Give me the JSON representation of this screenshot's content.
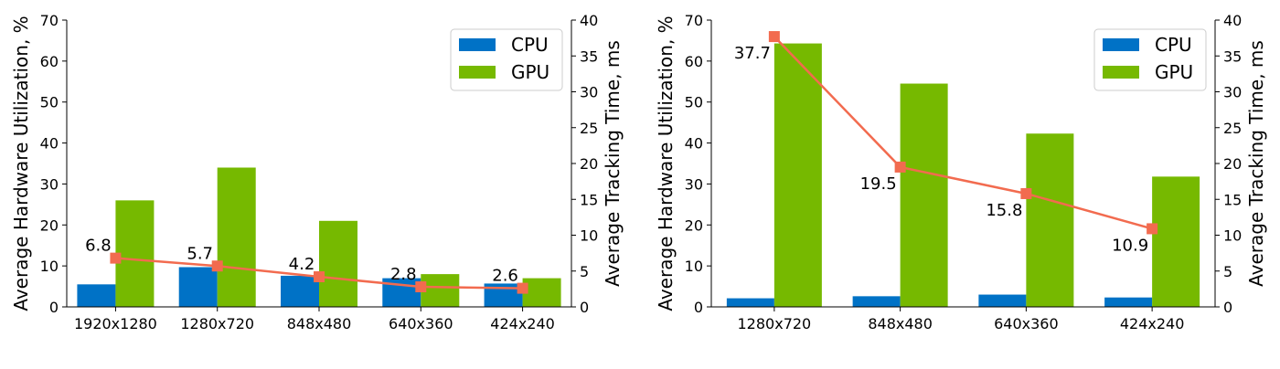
{
  "colors": {
    "cpu": "#0072c6",
    "gpu": "#76b900",
    "line": "#f26b4f"
  },
  "chart_data": [
    {
      "type": "bar",
      "categories": [
        "1920x1280",
        "1280x720",
        "848x480",
        "640x360",
        "424x240"
      ],
      "series": [
        {
          "name": "CPU",
          "axis": "left",
          "values": [
            5.5,
            9.7,
            7.6,
            7.0,
            5.7
          ]
        },
        {
          "name": "GPU",
          "axis": "left",
          "values": [
            26,
            34,
            21,
            8,
            7
          ]
        },
        {
          "type": "line",
          "axis": "right",
          "values": [
            6.8,
            5.7,
            4.2,
            2.8,
            2.6
          ]
        }
      ],
      "data_labels": [
        "6.8",
        "5.7",
        "4.2",
        "2.8",
        "2.6"
      ],
      "ylabel": "Average Hardware Utilization, %",
      "ylabel_right": "Average Tracking Time, ms",
      "ylim": [
        0,
        70
      ],
      "ylim_right": [
        0,
        40
      ],
      "yticks": [
        "0",
        "10",
        "20",
        "30",
        "40",
        "50",
        "60",
        "70"
      ],
      "yticks_right": [
        "0",
        "5",
        "10",
        "15",
        "20",
        "25",
        "30",
        "35",
        "40"
      ],
      "legend": [
        "CPU",
        "GPU"
      ],
      "legend_position": "top-right",
      "grid": false
    },
    {
      "type": "bar",
      "categories": [
        "1280x720",
        "848x480",
        "640x360",
        "424x240"
      ],
      "series": [
        {
          "name": "CPU",
          "axis": "left",
          "values": [
            2.1,
            2.6,
            3.0,
            2.3
          ]
        },
        {
          "name": "GPU",
          "axis": "left",
          "values": [
            64.3,
            54.5,
            42.3,
            31.8
          ]
        },
        {
          "type": "line",
          "axis": "right",
          "values": [
            37.7,
            19.5,
            15.8,
            10.9
          ]
        }
      ],
      "data_labels": [
        "37.7",
        "19.5",
        "15.8",
        "10.9"
      ],
      "ylabel": "Average Hardware Utilization, %",
      "ylabel_right": "Average Tracking Time, ms",
      "ylim": [
        0,
        70
      ],
      "ylim_right": [
        0,
        40
      ],
      "yticks": [
        "0",
        "10",
        "20",
        "30",
        "40",
        "50",
        "60",
        "70"
      ],
      "yticks_right": [
        "0",
        "5",
        "10",
        "15",
        "20",
        "25",
        "30",
        "35",
        "40"
      ],
      "legend": [
        "CPU",
        "GPU"
      ],
      "legend_position": "top-right",
      "grid": false
    }
  ]
}
